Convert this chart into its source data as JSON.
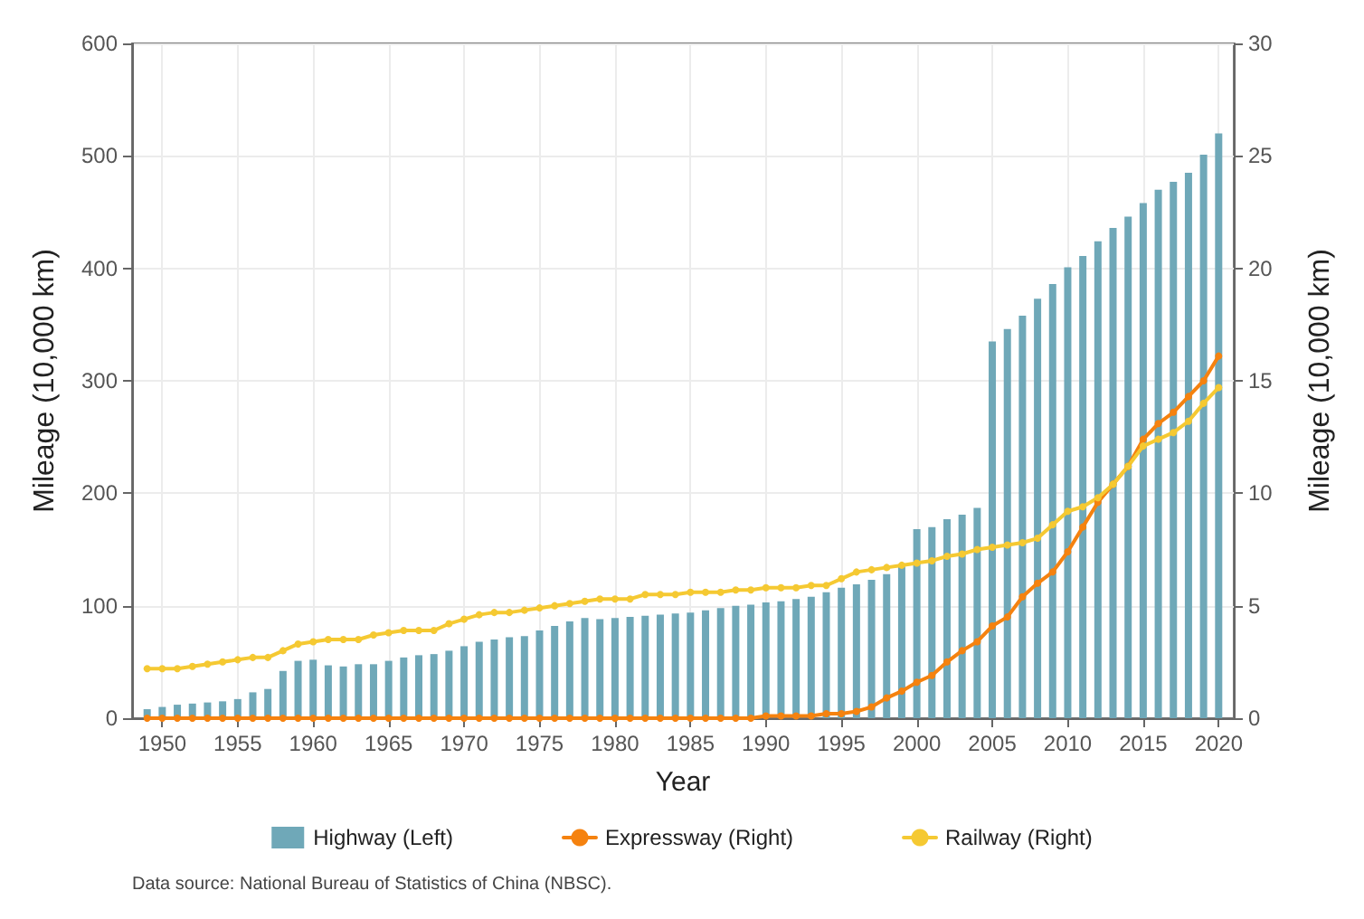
{
  "chart_data": {
    "type": "bar",
    "xlabel": "Year",
    "ylabel": "Mileage (10,000 km)",
    "y2label": "Mileage (10,000 km)",
    "x": [
      1949,
      1950,
      1951,
      1952,
      1953,
      1954,
      1955,
      1956,
      1957,
      1958,
      1959,
      1960,
      1961,
      1962,
      1963,
      1964,
      1965,
      1966,
      1967,
      1968,
      1969,
      1970,
      1971,
      1972,
      1973,
      1974,
      1975,
      1976,
      1977,
      1978,
      1979,
      1980,
      1981,
      1982,
      1983,
      1984,
      1985,
      1986,
      1987,
      1988,
      1989,
      1990,
      1991,
      1992,
      1993,
      1994,
      1995,
      1996,
      1997,
      1998,
      1999,
      2000,
      2001,
      2002,
      2003,
      2004,
      2005,
      2006,
      2007,
      2008,
      2009,
      2010,
      2011,
      2012,
      2013,
      2014,
      2015,
      2016,
      2017,
      2018,
      2019,
      2020
    ],
    "series": [
      {
        "name": "Highway (Left)",
        "color": "#6fa8b8",
        "values": [
          8,
          10,
          12,
          13,
          14,
          15,
          17,
          23,
          26,
          42,
          51,
          52,
          47,
          46,
          48,
          48,
          51,
          54,
          56,
          57,
          60,
          64,
          68,
          70,
          72,
          73,
          78,
          82,
          86,
          89,
          88,
          89,
          90,
          91,
          92,
          93,
          94,
          96,
          98,
          100,
          101,
          103,
          104,
          106,
          108,
          112,
          116,
          119,
          123,
          128,
          135,
          168,
          170,
          177,
          181,
          187,
          335,
          346,
          358,
          373,
          386,
          401,
          411,
          424,
          436,
          446,
          458,
          470,
          477,
          485,
          501,
          520
        ]
      },
      {
        "name": "Expressway (Right)",
        "type": "line",
        "axis": "y2",
        "color": "#f5820f",
        "values": [
          0,
          0,
          0,
          0,
          0,
          0,
          0,
          0,
          0,
          0,
          0,
          0,
          0,
          0,
          0,
          0,
          0,
          0,
          0,
          0,
          0,
          0,
          0,
          0,
          0,
          0,
          0,
          0,
          0,
          0,
          0,
          0,
          0,
          0,
          0,
          0,
          0,
          0,
          0,
          0,
          0,
          0.1,
          0.1,
          0.1,
          0.1,
          0.2,
          0.2,
          0.3,
          0.5,
          0.9,
          1.2,
          1.6,
          1.9,
          2.5,
          3.0,
          3.4,
          4.1,
          4.5,
          5.4,
          6.0,
          6.5,
          7.4,
          8.5,
          9.6,
          10.4,
          11.2,
          12.4,
          13.1,
          13.6,
          14.3,
          15.0,
          16.1
        ]
      },
      {
        "name": "Railway (Right)",
        "type": "line",
        "axis": "y2",
        "color": "#f5c932",
        "values": [
          2.2,
          2.2,
          2.2,
          2.3,
          2.4,
          2.5,
          2.6,
          2.7,
          2.7,
          3.0,
          3.3,
          3.4,
          3.5,
          3.5,
          3.5,
          3.7,
          3.8,
          3.9,
          3.9,
          3.9,
          4.2,
          4.4,
          4.6,
          4.7,
          4.7,
          4.8,
          4.9,
          5.0,
          5.1,
          5.2,
          5.3,
          5.3,
          5.3,
          5.5,
          5.5,
          5.5,
          5.6,
          5.6,
          5.6,
          5.7,
          5.7,
          5.8,
          5.8,
          5.8,
          5.9,
          5.9,
          6.2,
          6.5,
          6.6,
          6.7,
          6.8,
          6.9,
          7.0,
          7.2,
          7.3,
          7.5,
          7.6,
          7.7,
          7.8,
          8.0,
          8.6,
          9.2,
          9.4,
          9.8,
          10.4,
          11.2,
          12.1,
          12.4,
          12.7,
          13.2,
          14.0,
          14.7
        ]
      }
    ],
    "xlim": [
      1948,
      2021
    ],
    "xticks": [
      1950,
      1955,
      1960,
      1965,
      1970,
      1975,
      1980,
      1985,
      1990,
      1995,
      2000,
      2005,
      2010,
      2015,
      2020
    ],
    "ylim": [
      0,
      600
    ],
    "yticks": [
      0,
      100,
      200,
      300,
      400,
      500,
      600
    ],
    "y2lim": [
      0,
      30
    ],
    "y2ticks": [
      0,
      5,
      10,
      15,
      20,
      25,
      30
    ],
    "grid": true,
    "legend": "bottom",
    "marker": "circle",
    "line_style": "solid",
    "annotations": [
      "Data source: National Bureau of Statistics of China (NBSC)."
    ]
  }
}
